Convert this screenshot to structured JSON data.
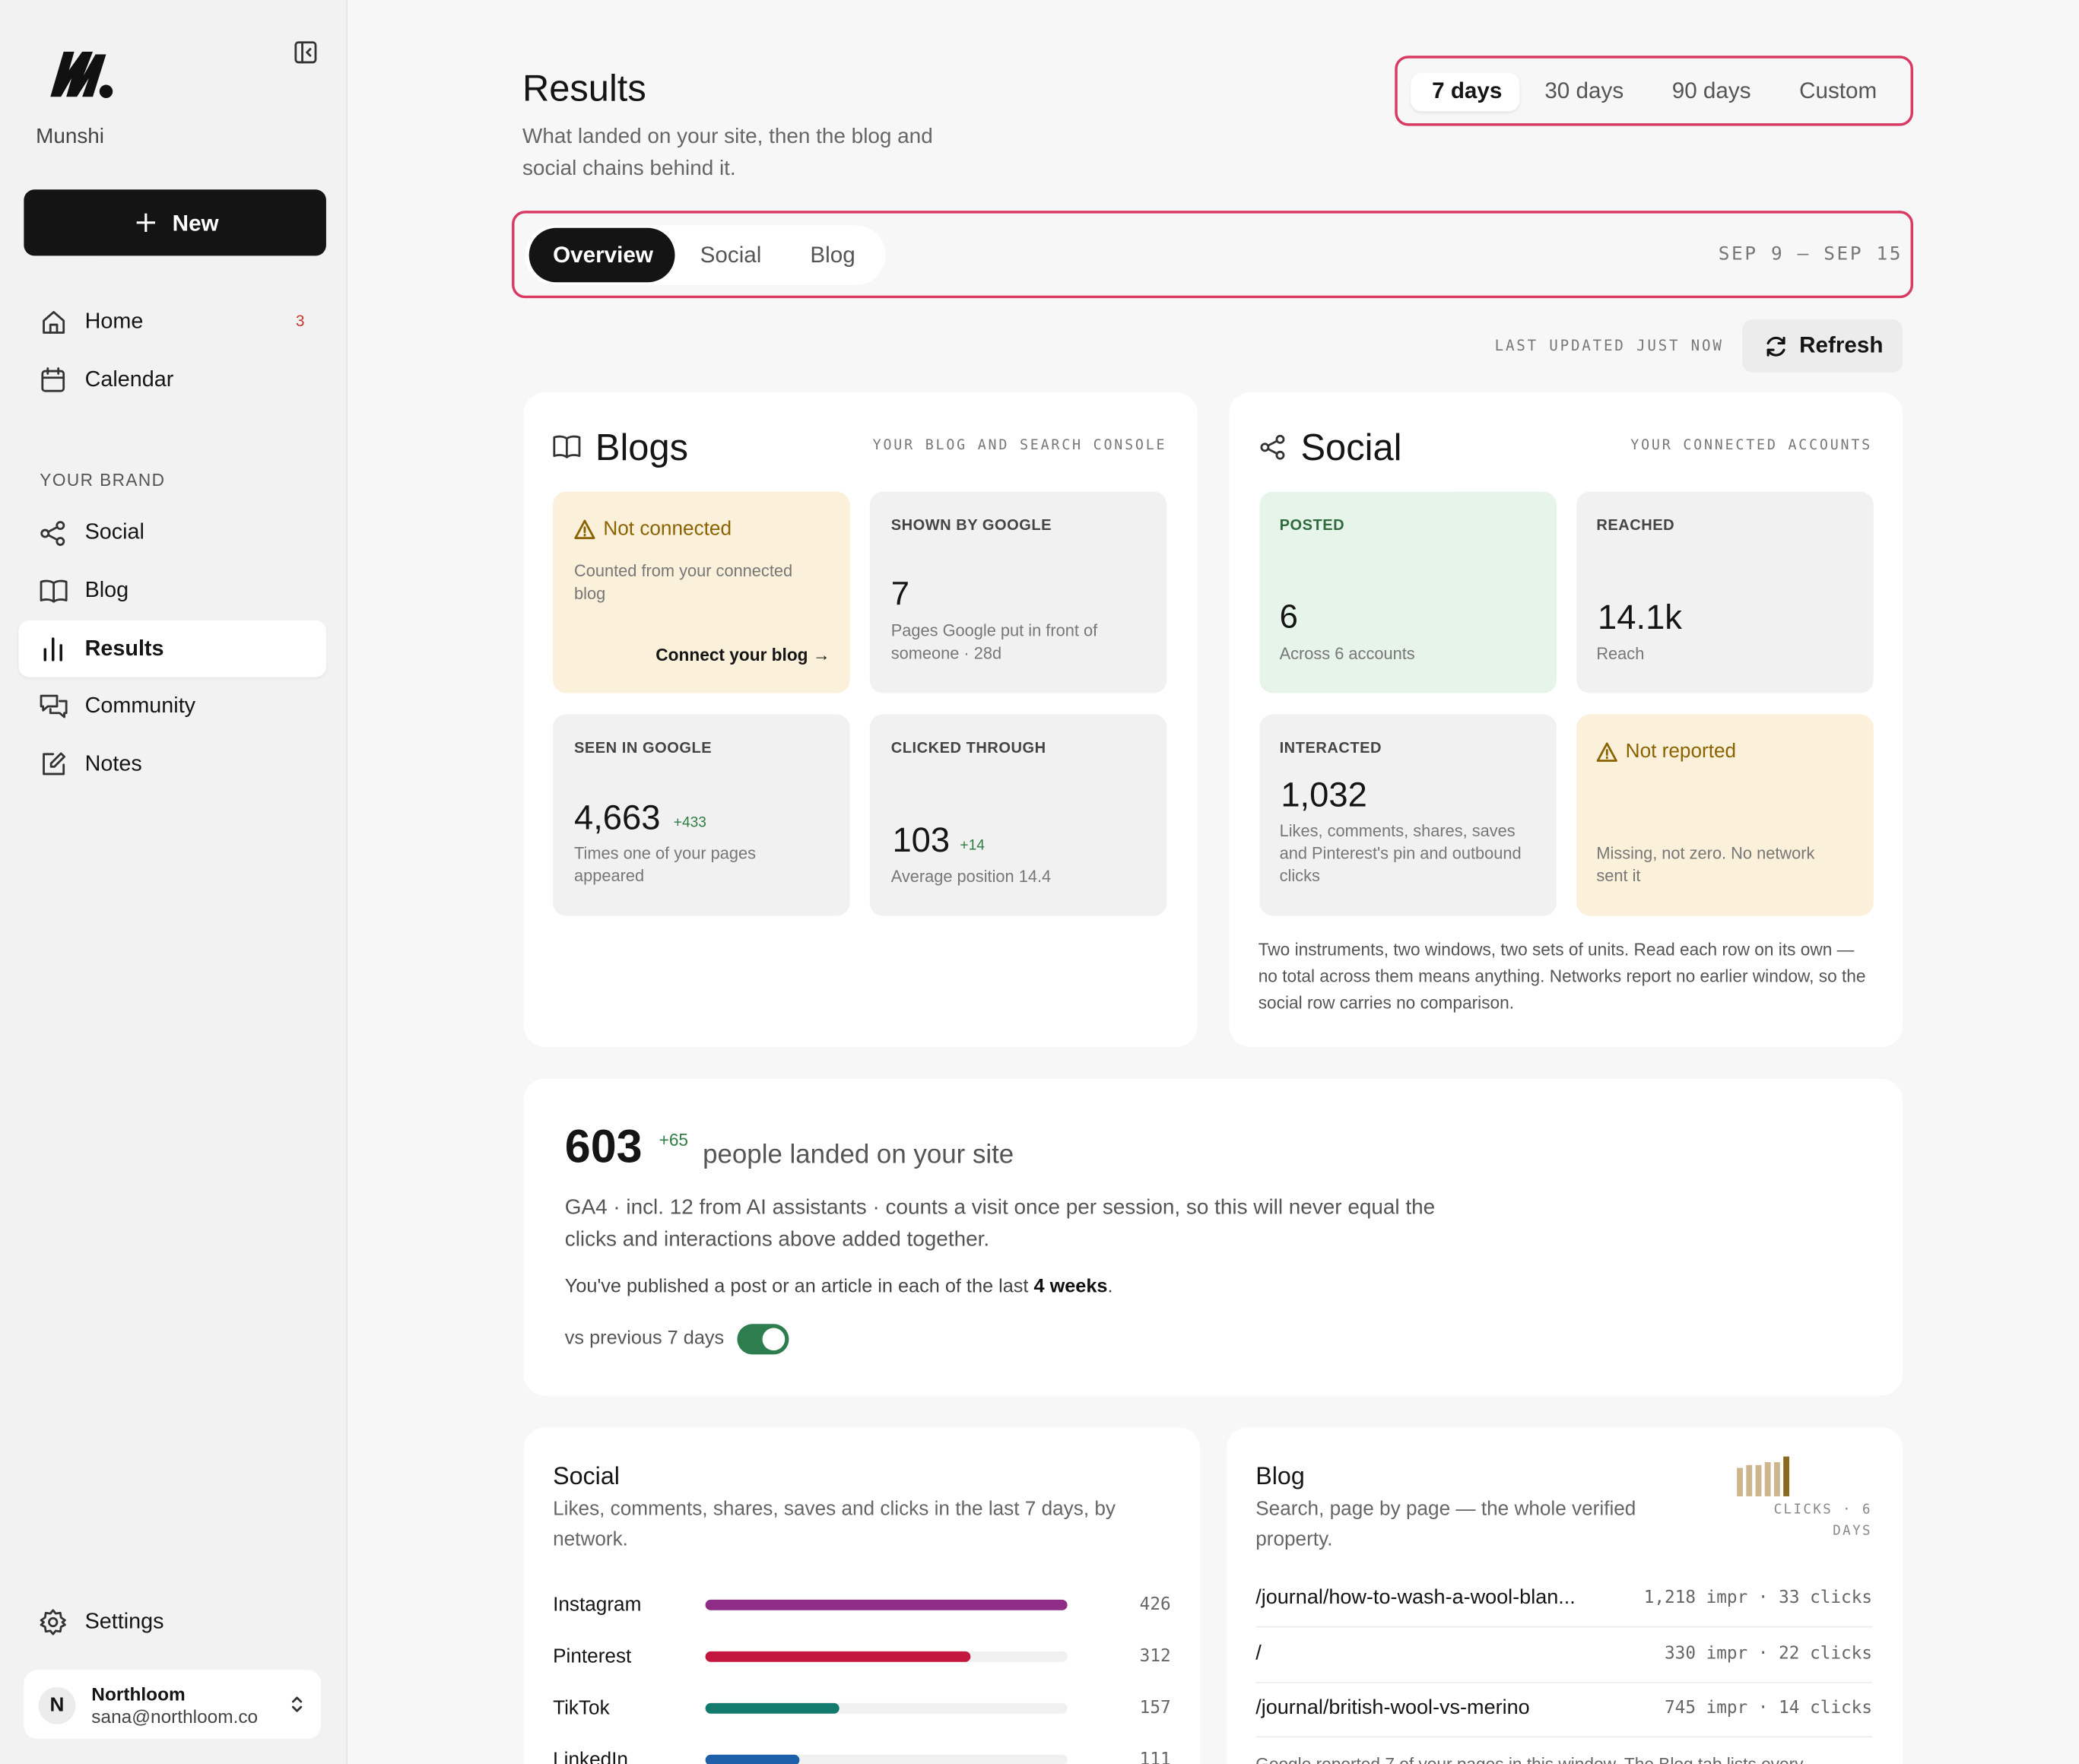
{
  "sidebar": {
    "brand": "Munshi",
    "new_button": "New",
    "nav": [
      {
        "label": "Home",
        "badge": "3"
      },
      {
        "label": "Calendar"
      }
    ],
    "section_label": "YOUR BRAND",
    "brand_nav": [
      "Social",
      "Blog",
      "Results",
      "Community",
      "Notes"
    ],
    "settings": "Settings",
    "account": {
      "initial": "N",
      "name": "Northloom",
      "email": "sana@northloom.co"
    }
  },
  "header": {
    "title": "Results",
    "subtitle": "What landed on your site, then the blog and social chains behind it.",
    "ranges": [
      "7 days",
      "30 days",
      "90 days",
      "Custom"
    ],
    "tabs": [
      "Overview",
      "Social",
      "Blog"
    ],
    "date_range": "SEP 9 – SEP 15",
    "last_updated": "LAST UPDATED JUST NOW",
    "refresh": "Refresh"
  },
  "blogs": {
    "title": "Blogs",
    "caption": "YOUR BLOG AND SEARCH CONSOLE",
    "tiles": [
      {
        "status": "Not connected",
        "note": "Counted from your connected blog",
        "action": "Connect your blog →"
      },
      {
        "label": "SHOWN BY GOOGLE",
        "value": "7",
        "desc": "Pages Google put in front of someone · 28d"
      },
      {
        "label": "SEEN IN GOOGLE",
        "value": "4,663",
        "delta": "+433",
        "desc": "Times one of your pages appeared"
      },
      {
        "label": "CLICKED THROUGH",
        "value": "103",
        "delta": "+14",
        "desc": "Average position 14.4"
      }
    ]
  },
  "social": {
    "title": "Social",
    "caption": "YOUR CONNECTED ACCOUNTS",
    "tiles": [
      {
        "label": "POSTED",
        "value": "6",
        "desc": "Across 6 accounts"
      },
      {
        "label": "REACHED",
        "value": "14.1k",
        "desc": "Reach"
      },
      {
        "label": "INTERACTED",
        "value": "1,032",
        "desc": "Likes, comments, shares, saves and Pinterest's pin and outbound clicks"
      },
      {
        "status": "Not reported",
        "desc": "Missing, not zero. No network sent it"
      }
    ],
    "footnote": "Two instruments, two windows, two sets of units. Read each row on its own — no total across them means anything. Networks report no earlier window, so the social row carries no comparison."
  },
  "visits": {
    "value": "603",
    "delta": "+65",
    "label": "people landed on your site",
    "detail": "GA4 · incl. 12 from AI assistants · counts a visit once per session, so this will never equal the clicks and interactions above added together.",
    "streak": {
      "before": "You've published a post or an article in each of the last ",
      "highlight": "4 weeks",
      "after": "."
    },
    "toggle_label": "vs previous 7 days"
  },
  "network_breakdown": {
    "title": "Social",
    "subtitle": "Likes, comments, shares, saves and clicks in the last 7 days, by network.",
    "rows": [
      {
        "name": "Instagram",
        "value": 426,
        "color": "#8e2c86"
      },
      {
        "name": "Pinterest",
        "value": 312,
        "color": "#c3173f"
      },
      {
        "name": "TikTok",
        "value": 157,
        "color": "#137a6e"
      },
      {
        "name": "LinkedIn",
        "value": 111,
        "color": "#1d5fa8"
      }
    ]
  },
  "blog_pages": {
    "title": "Blog",
    "subtitle": "Search, page by page — the whole verified property.",
    "sparkline": [
      20,
      22,
      22,
      24,
      24,
      28
    ],
    "sparkline_caption": "CLICKS · 6 DAYS",
    "rows": [
      {
        "path": "/journal/how-to-wash-a-wool-blan...",
        "stats": "1,218 impr · 33 clicks"
      },
      {
        "path": "/",
        "stats": "330 impr · 22 clicks"
      },
      {
        "path": "/journal/british-wool-vs-merino",
        "stats": "745 impr · 14 clicks"
      }
    ],
    "footnote": "Google reported 7 of your pages in this window. The Blog tab lists every"
  }
}
